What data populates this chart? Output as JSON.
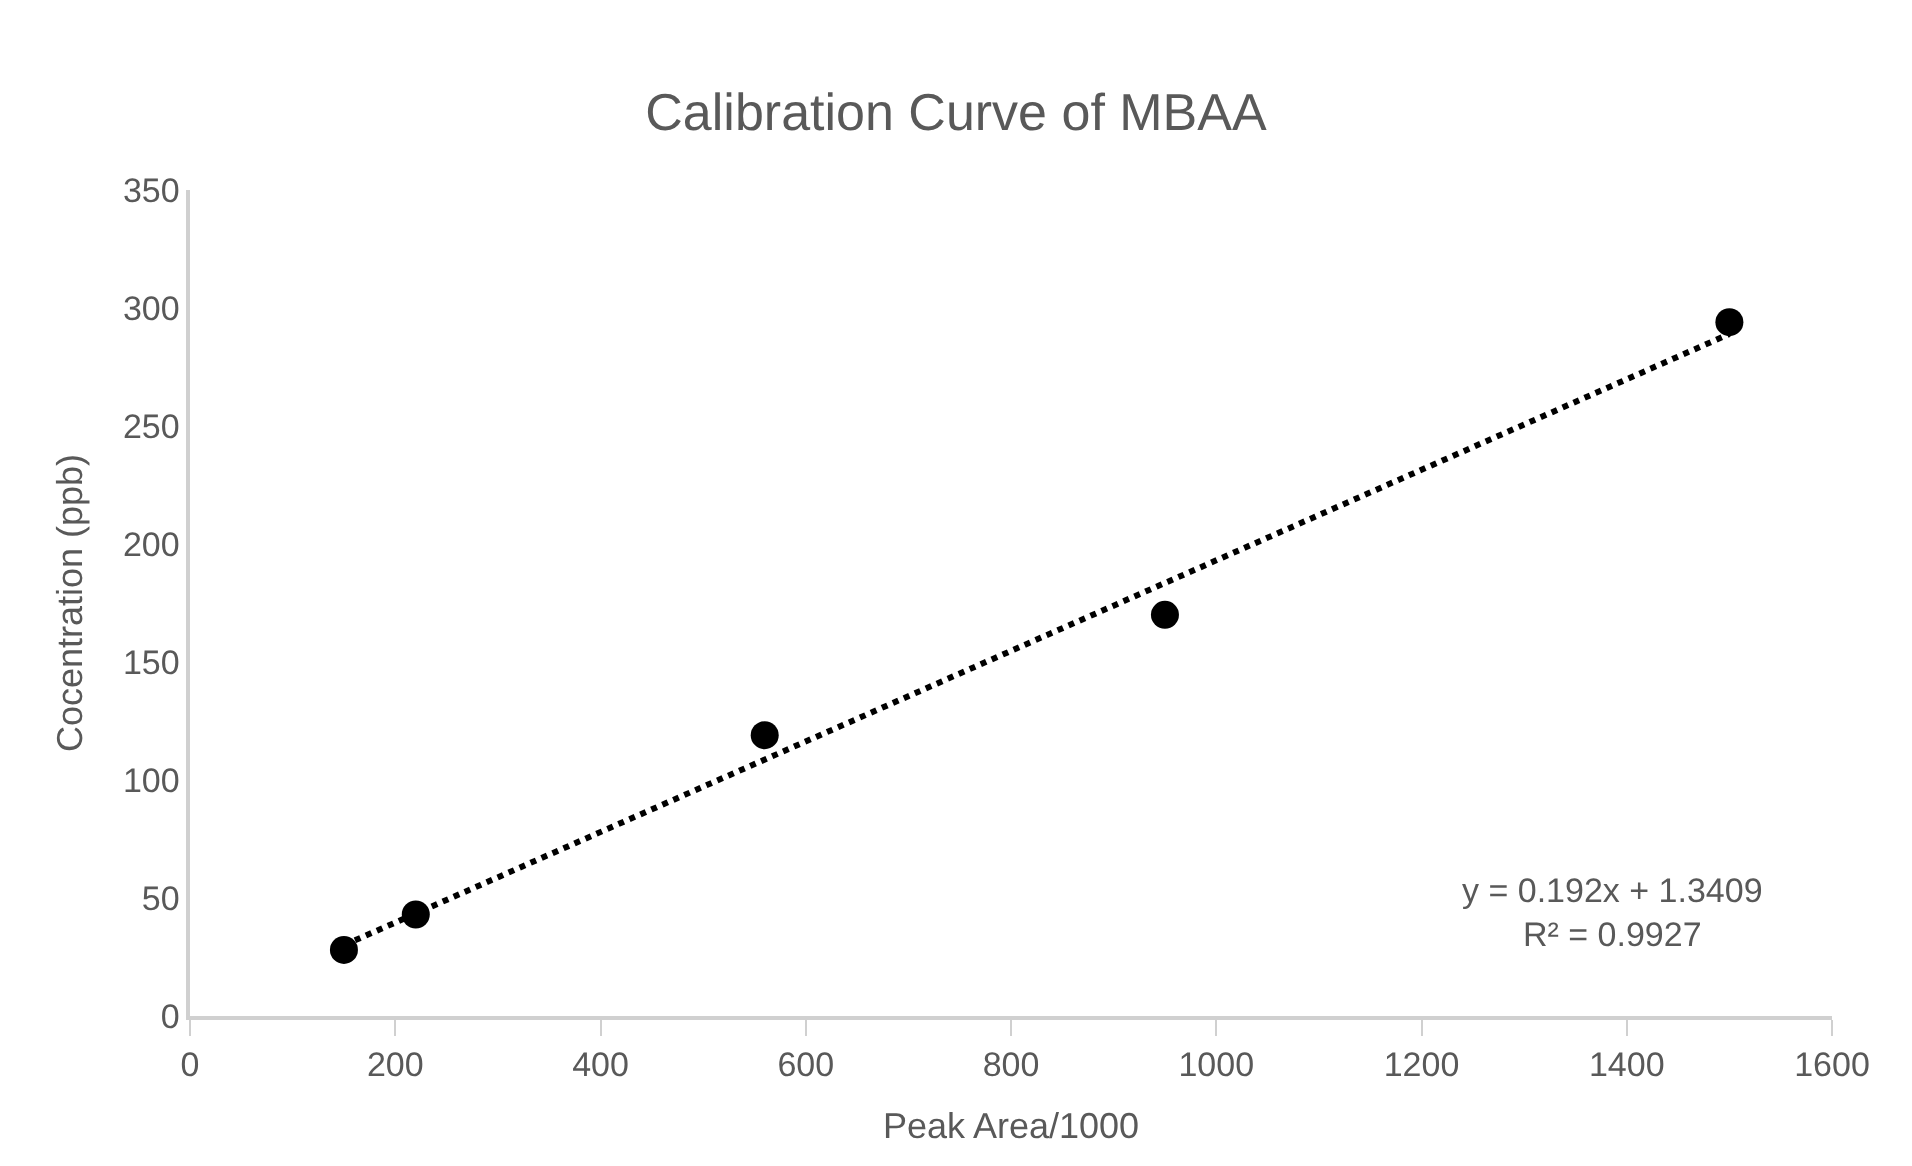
{
  "chart_data": {
    "type": "scatter",
    "title": "Calibration Curve of MBAA",
    "xlabel": "Peak Area/1000",
    "ylabel": "Cocentration (ppb)",
    "xlim": [
      0,
      1600
    ],
    "xticks": [
      0,
      200,
      400,
      600,
      800,
      1000,
      1200,
      1400,
      1600
    ],
    "ylim": [
      0,
      350
    ],
    "yticks": [
      0,
      50,
      100,
      150,
      200,
      250,
      300,
      350
    ],
    "grid": false,
    "legend": false,
    "series": [
      {
        "color": "#000000",
        "marker": "circle",
        "x": [
          150,
          220,
          560,
          950,
          1500
        ],
        "values": [
          28,
          43,
          119,
          170,
          294
        ]
      },
      {
        "type": "line",
        "color": "#000000",
        "line_style": "dotted",
        "x": [
          150,
          1500
        ],
        "values": [
          30,
          289
        ]
      }
    ],
    "annotations": [
      "y = 0.192x + 1.3409\nR² = 0.9927"
    ]
  }
}
